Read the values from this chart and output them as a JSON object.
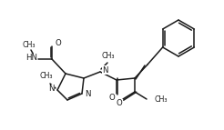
{
  "bg_color": "#ffffff",
  "line_color": "#1a1a1a",
  "line_width": 1.1,
  "font_size": 6.2,
  "figsize": [
    2.46,
    1.43
  ],
  "dpi": 100,
  "xlim": [
    0,
    246
  ],
  "ylim": [
    0,
    143
  ]
}
